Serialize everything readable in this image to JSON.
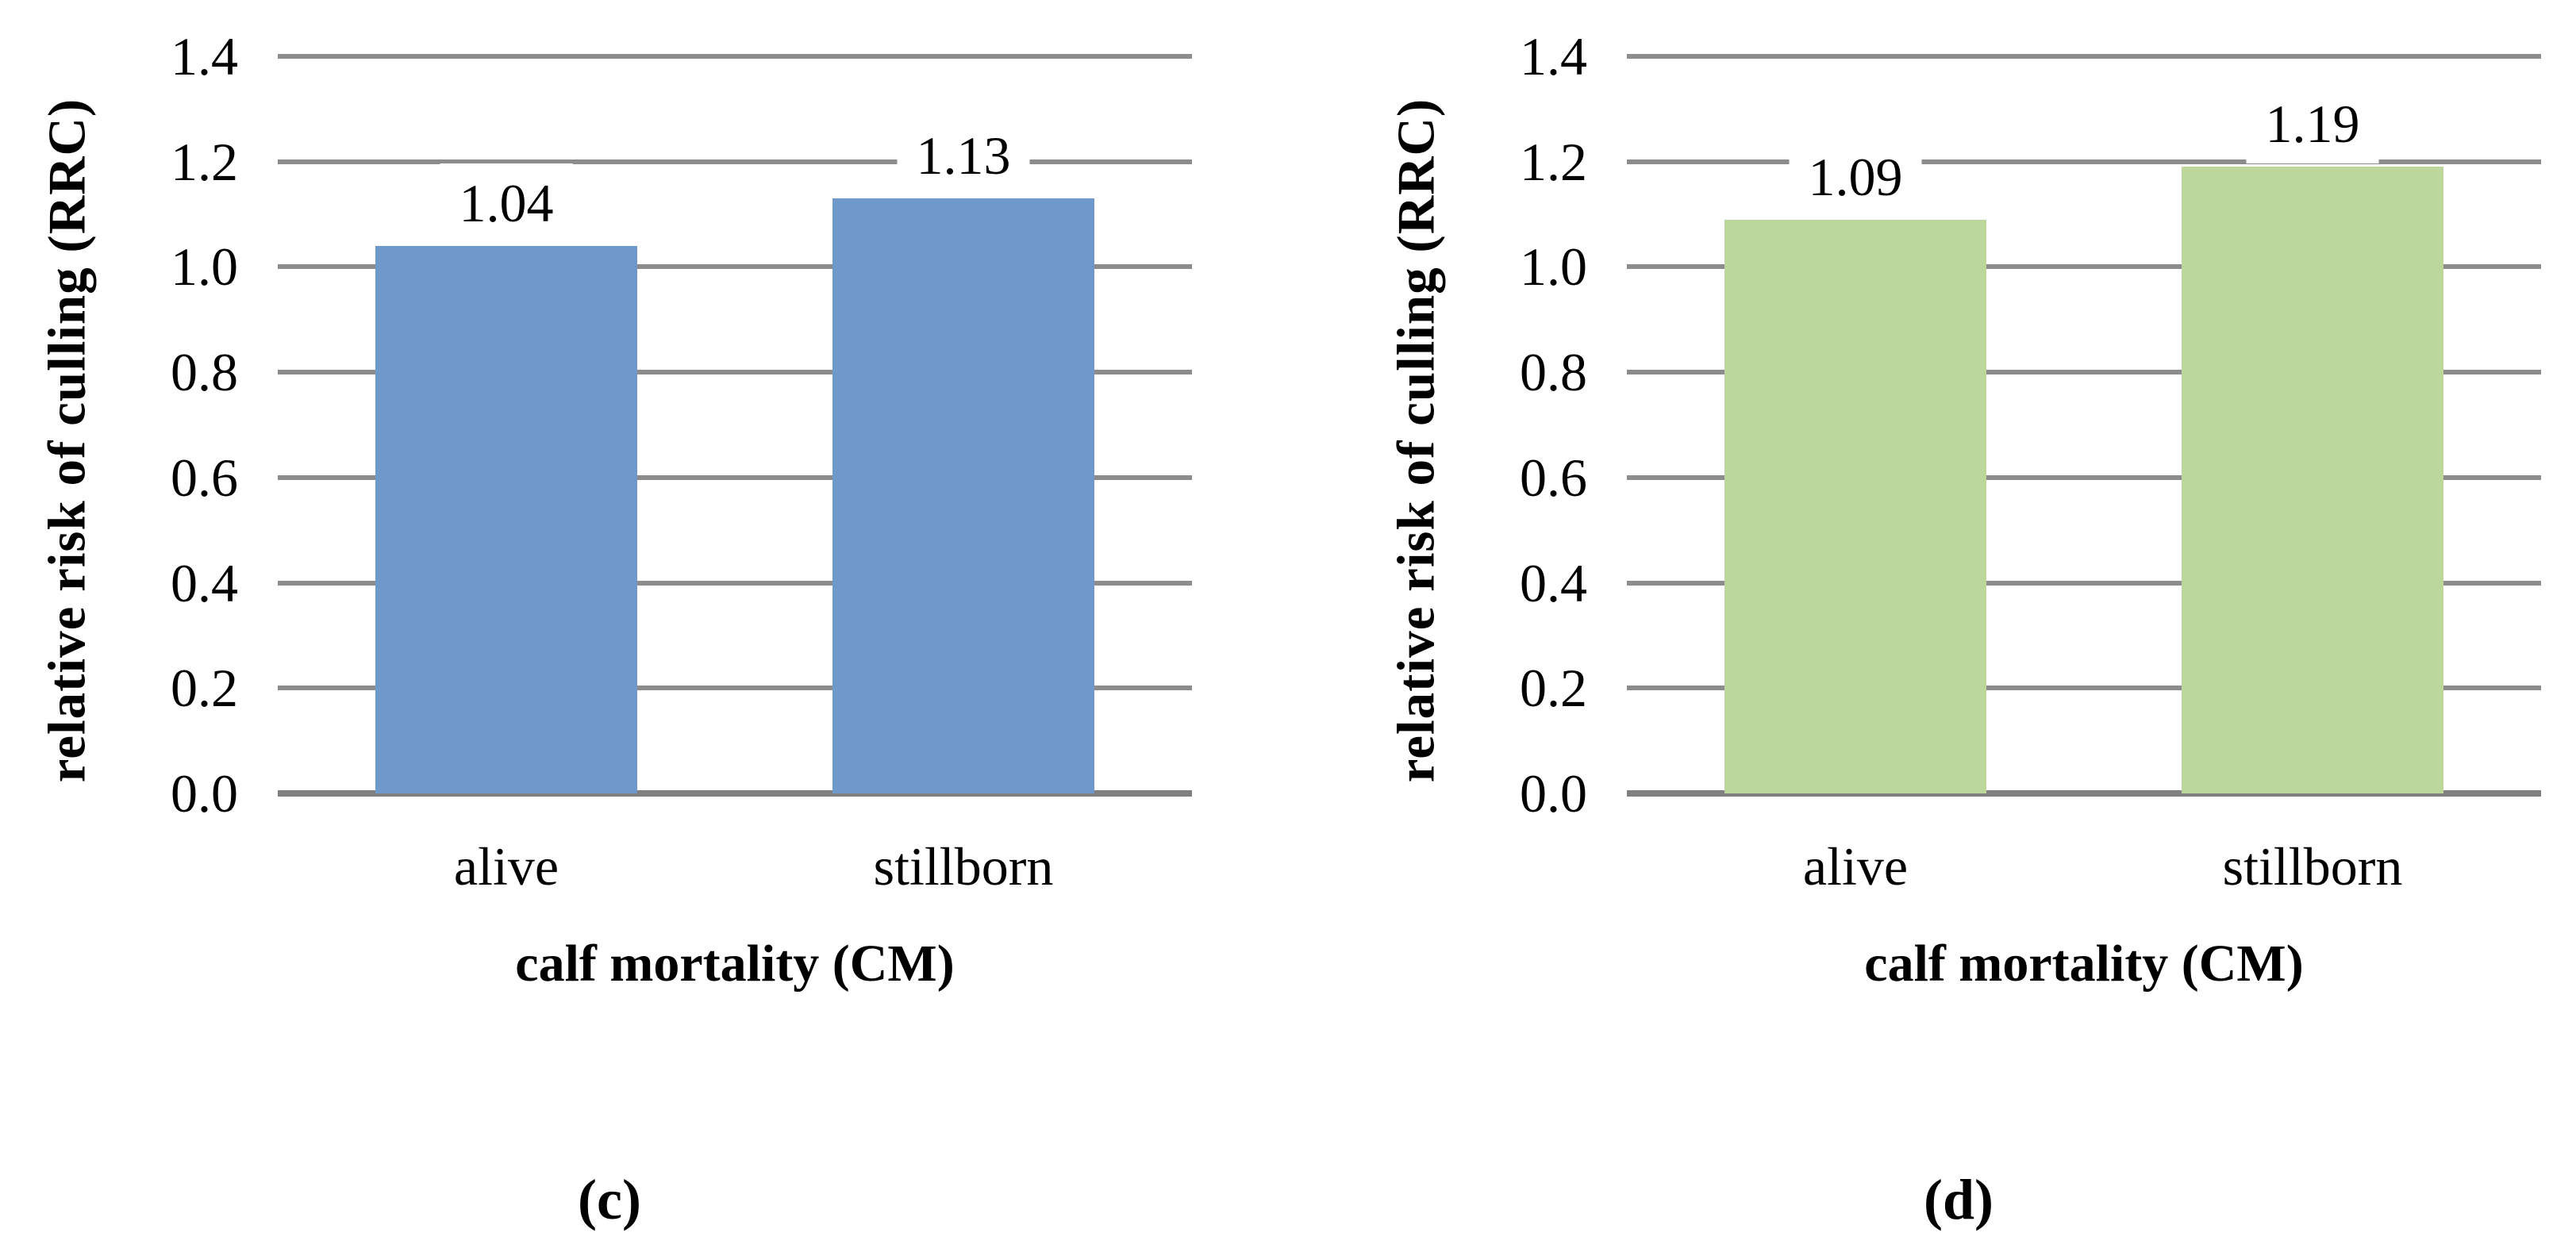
{
  "styles": {
    "background": "#ffffff",
    "gridline_color": "#8c8c8c",
    "axis_line_color": "#7f7f7f",
    "text_color": "#000000",
    "panel_c_bar_color": "#7099cb",
    "panel_d_bar_color": "#bcd69b"
  },
  "chart_data": [
    {
      "type": "bar",
      "panel_letter": "(c)",
      "title": "",
      "xlabel": "calf mortality (CM)",
      "ylabel": "relative risk of culling (RRC)",
      "categories": [
        "alive",
        "stillborn"
      ],
      "values": [
        1.04,
        1.13
      ],
      "data_labels": [
        "1.04",
        "1.13"
      ],
      "bar_color": "#7099cb",
      "ylim": [
        0.0,
        1.4
      ],
      "ytick_step": 0.2,
      "yticks": [
        "1.4",
        "1.2",
        "1.0",
        "0.8",
        "0.6",
        "0.4",
        "0.2",
        "0.0"
      ],
      "grid": true,
      "legend": "none"
    },
    {
      "type": "bar",
      "panel_letter": "(d)",
      "title": "",
      "xlabel": "calf mortality (CM)",
      "ylabel": "relative risk of culling (RRC)",
      "categories": [
        "alive",
        "stillborn"
      ],
      "values": [
        1.09,
        1.19
      ],
      "data_labels": [
        "1.09",
        "1.19"
      ],
      "bar_color": "#bcd69b",
      "ylim": [
        0.0,
        1.4
      ],
      "ytick_step": 0.2,
      "yticks": [
        "1.4",
        "1.2",
        "1.0",
        "0.8",
        "0.6",
        "0.4",
        "0.2",
        "0.0"
      ],
      "grid": true,
      "legend": "none"
    }
  ]
}
